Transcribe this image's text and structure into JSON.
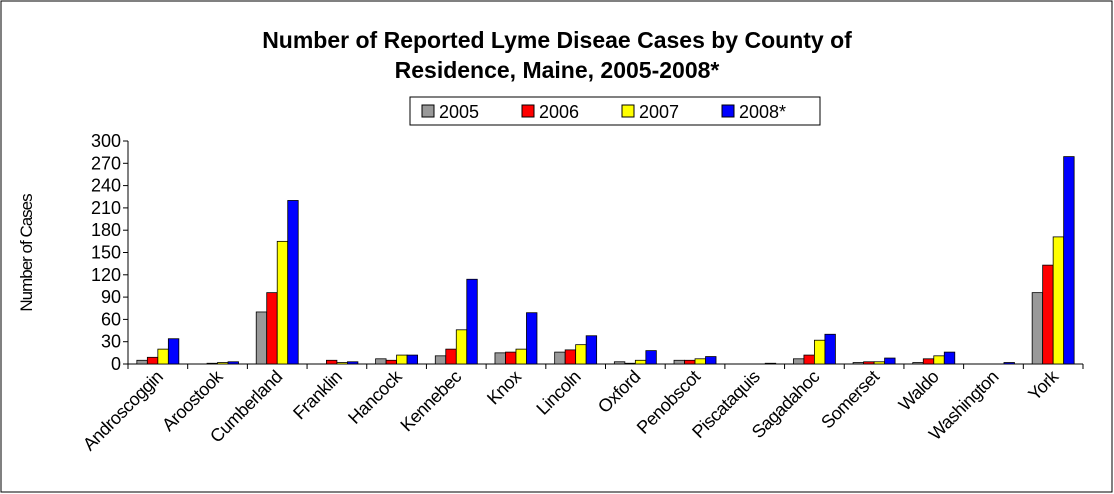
{
  "chart_data": {
    "type": "bar",
    "title": "Number of Reported Lyme Diseae Cases by County of Residence, Maine, 2005-2008*",
    "y_label": "Number of Cases",
    "categories": [
      "Androscoggin",
      "Aroostook",
      "Cumberland",
      "Franklin",
      "Hancock",
      "Kennebec",
      "Knox",
      "Lincoln",
      "Oxford",
      "Penobscot",
      "Piscataquis",
      "Sagadahoc",
      "Somerset",
      "Waldo",
      "Washington",
      "York"
    ],
    "series": [
      {
        "name": "2005",
        "color": "#999999",
        "values": [
          5,
          0,
          70,
          0,
          7,
          11,
          15,
          16,
          3,
          5,
          0,
          7,
          2,
          2,
          0,
          96
        ]
      },
      {
        "name": "2006",
        "color": "#ff0000",
        "values": [
          9,
          1,
          96,
          5,
          5,
          20,
          16,
          19,
          1,
          5,
          0,
          12,
          3,
          7,
          0,
          133
        ]
      },
      {
        "name": "2007",
        "color": "#ffff00",
        "values": [
          20,
          2,
          165,
          2,
          12,
          46,
          20,
          26,
          5,
          7,
          0,
          32,
          3,
          11,
          0,
          171
        ]
      },
      {
        "name": "2008*",
        "color": "#0000ff",
        "values": [
          34,
          3,
          220,
          3,
          12,
          114,
          69,
          38,
          18,
          10,
          1,
          40,
          8,
          16,
          2,
          279
        ]
      }
    ],
    "ylim": [
      0,
      300
    ],
    "yticks": [
      0,
      30,
      60,
      90,
      120,
      150,
      180,
      210,
      240,
      270,
      300
    ],
    "grid": false,
    "legend": "top"
  }
}
